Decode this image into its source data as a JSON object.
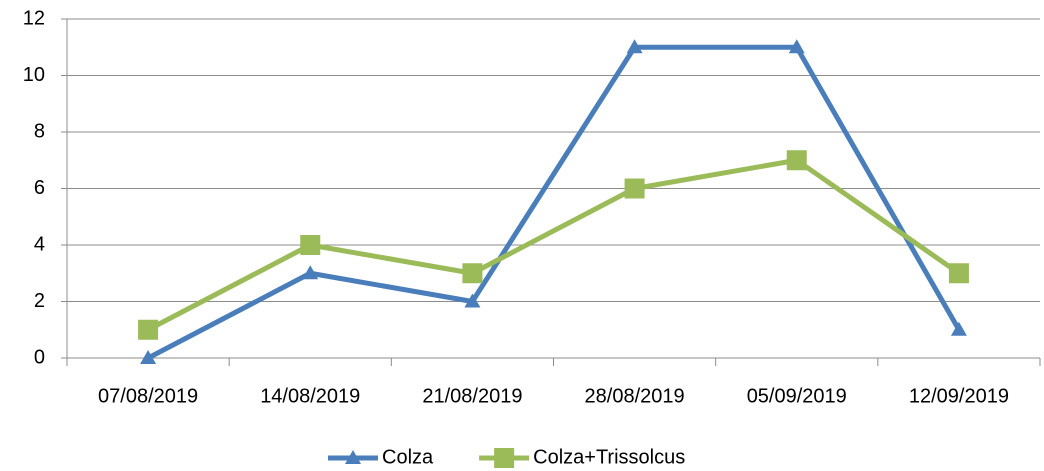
{
  "chart_data": {
    "type": "line",
    "categories": [
      "07/08/2019",
      "14/08/2019",
      "21/08/2019",
      "28/08/2019",
      "05/09/2019",
      "12/09/2019"
    ],
    "series": [
      {
        "name": "Colza",
        "color": "#4a7ebb",
        "marker": "triangle",
        "values": [
          0,
          3,
          2,
          11,
          11,
          1
        ]
      },
      {
        "name": "Colza+Trissolcus",
        "color": "#9bbb59",
        "marker": "square",
        "values": [
          1,
          4,
          3,
          6,
          7,
          3
        ]
      }
    ],
    "ylim": [
      0,
      12
    ],
    "yticks": [
      0,
      2,
      4,
      6,
      8,
      10,
      12
    ],
    "grid": true,
    "legend": "bottom"
  }
}
